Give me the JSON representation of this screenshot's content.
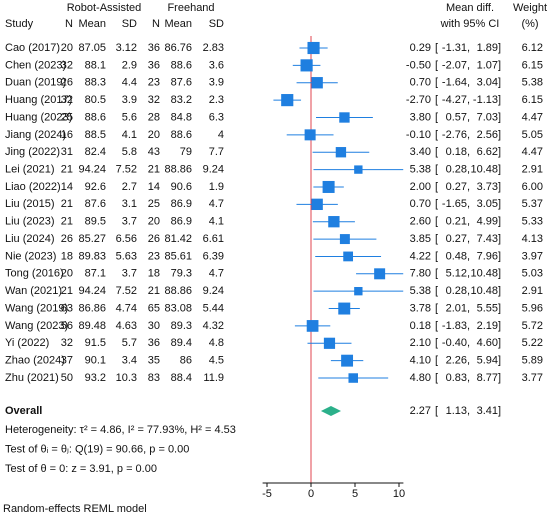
{
  "chart_data": {
    "type": "forest",
    "group_labels": [
      "Robot-Assisted",
      "Freehand"
    ],
    "columns": [
      "Study",
      "N",
      "Mean",
      "SD",
      "N",
      "Mean",
      "SD"
    ],
    "effect_header": [
      "Mean diff.",
      "with 95% CI"
    ],
    "weight_header": [
      "Weight",
      "(%)"
    ],
    "categories": [
      "Cao (2017)",
      "Chen (2023)",
      "Duan (2019)",
      "Huang (2017)",
      "Huang (2023)",
      "Jiang (2024)",
      "Jing (2022)",
      "Lei (2021)",
      "Liao (2022)",
      "Liu (2015)",
      "Liu (2023)",
      "Liu (2024)",
      "Nie (2023)",
      "Tong (2016)",
      "Wan (2021)",
      "Wang (2019)",
      "Wang (2023)",
      "Yi (2022)",
      "Zhao (2024)",
      "Zhu (2021)"
    ],
    "n1": [
      20,
      32,
      26,
      32,
      25,
      16,
      31,
      21,
      14,
      21,
      21,
      26,
      18,
      20,
      21,
      63,
      56,
      32,
      37,
      50
    ],
    "mean1": [
      87.05,
      88.1,
      88.3,
      80.5,
      88.6,
      88.5,
      82.4,
      94.24,
      92.6,
      87.6,
      89.5,
      85.27,
      89.83,
      87.1,
      94.24,
      86.86,
      89.48,
      91.5,
      90.1,
      93.2
    ],
    "sd1": [
      3.12,
      2.9,
      4.4,
      3.9,
      5.6,
      4.1,
      5.8,
      7.52,
      2.7,
      3.1,
      3.7,
      6.56,
      5.63,
      3.7,
      7.52,
      4.74,
      4.63,
      5.7,
      3.4,
      10.3
    ],
    "n2": [
      36,
      36,
      23,
      32,
      28,
      20,
      43,
      21,
      14,
      25,
      20,
      26,
      23,
      18,
      21,
      65,
      30,
      36,
      35,
      83
    ],
    "mean2": [
      86.76,
      88.6,
      87.6,
      83.2,
      84.8,
      88.6,
      79,
      88.86,
      90.6,
      86.9,
      86.9,
      81.42,
      85.61,
      79.3,
      88.86,
      83.08,
      89.3,
      89.4,
      86,
      88.4
    ],
    "sd2": [
      2.83,
      3.6,
      3.9,
      2.3,
      6.3,
      4,
      7.7,
      9.24,
      1.9,
      4.7,
      4.1,
      6.61,
      6.39,
      4.7,
      9.24,
      5.44,
      4.32,
      4.8,
      4.5,
      11.9
    ],
    "effect": {
      "values": [
        0.29,
        -0.5,
        0.7,
        -2.7,
        3.8,
        -0.1,
        3.4,
        5.38,
        2,
        0.7,
        2.6,
        3.85,
        4.22,
        7.8,
        5.38,
        3.78,
        0.18,
        2.1,
        4.1,
        4.8
      ],
      "value_labels": [
        "0.29",
        "-0.50",
        "0.70",
        "-2.70",
        "3.80",
        "-0.10",
        "3.40",
        "5.38",
        "2.00",
        "0.70",
        "2.60",
        "3.85",
        "4.22",
        "7.80",
        "5.38",
        "3.78",
        "0.18",
        "2.10",
        "4.10",
        "4.80"
      ]
    },
    "ci_low": {
      "values": [
        -1.31,
        -2.07,
        -1.64,
        -4.27,
        0.57,
        -2.76,
        0.18,
        0.28,
        0.27,
        -1.65,
        0.21,
        0.27,
        0.48,
        5.12,
        0.28,
        2.01,
        -1.83,
        -0.4,
        2.26,
        0.83
      ],
      "value_labels": [
        "-1.31",
        "-2.07",
        "-1.64",
        "-4.27",
        "0.57",
        "-2.76",
        "0.18",
        "0.28",
        "0.27",
        "-1.65",
        "0.21",
        "0.27",
        "0.48",
        "5.12",
        "0.28",
        "2.01",
        "-1.83",
        "-0.40",
        "2.26",
        "0.83"
      ]
    },
    "ci_high": {
      "values": [
        1.89,
        1.07,
        3.04,
        -1.13,
        7.03,
        2.56,
        6.62,
        10.48,
        3.73,
        3.05,
        4.99,
        7.43,
        7.96,
        10.48,
        10.48,
        5.55,
        2.19,
        4.6,
        5.94,
        8.77
      ],
      "value_labels": [
        "1.89",
        "1.07",
        "3.04",
        "-1.13",
        "7.03",
        "2.56",
        "6.62",
        "10.48",
        "3.73",
        "3.05",
        "4.99",
        "7.43",
        "7.96",
        "10.48",
        "10.48",
        "5.55",
        "2.19",
        "4.60",
        "5.94",
        "8.77"
      ]
    },
    "weight": {
      "values": [
        6.12,
        6.15,
        5.38,
        6.15,
        4.47,
        5.05,
        4.47,
        2.91,
        6,
        5.37,
        5.33,
        4.13,
        3.97,
        5.03,
        2.91,
        5.96,
        5.72,
        5.22,
        5.89,
        3.77
      ],
      "value_labels": [
        "6.12",
        "6.15",
        "5.38",
        "6.15",
        "4.47",
        "5.05",
        "4.47",
        "2.91",
        "6.00",
        "5.37",
        "5.33",
        "4.13",
        "3.97",
        "5.03",
        "2.91",
        "5.96",
        "5.72",
        "5.22",
        "5.89",
        "3.77"
      ]
    },
    "ci_format": {
      "open": "[",
      "sep": ",",
      "close": "]"
    },
    "overall": {
      "label": "Overall",
      "value": 2.27,
      "ci_low": 1.13,
      "ci_high": 3.41
    },
    "notes": [
      "Heterogeneity: τ² = 4.86, I² = 77.93%, H² = 4.53",
      "Test of θᵢ = θⱼ: Q(19) = 90.66, p = 0.00",
      "Test of θ = 0: z = 3.91, p = 0.00"
    ],
    "footnote": "Random-effects REML model",
    "xlim": [
      -5.5,
      10.5
    ],
    "xticks": [
      -5,
      0,
      5,
      10
    ],
    "null_line": 0,
    "marker_color": "#1f7fe0",
    "overall_color": "#2bb08a",
    "null_line_color": "#e0454f"
  }
}
